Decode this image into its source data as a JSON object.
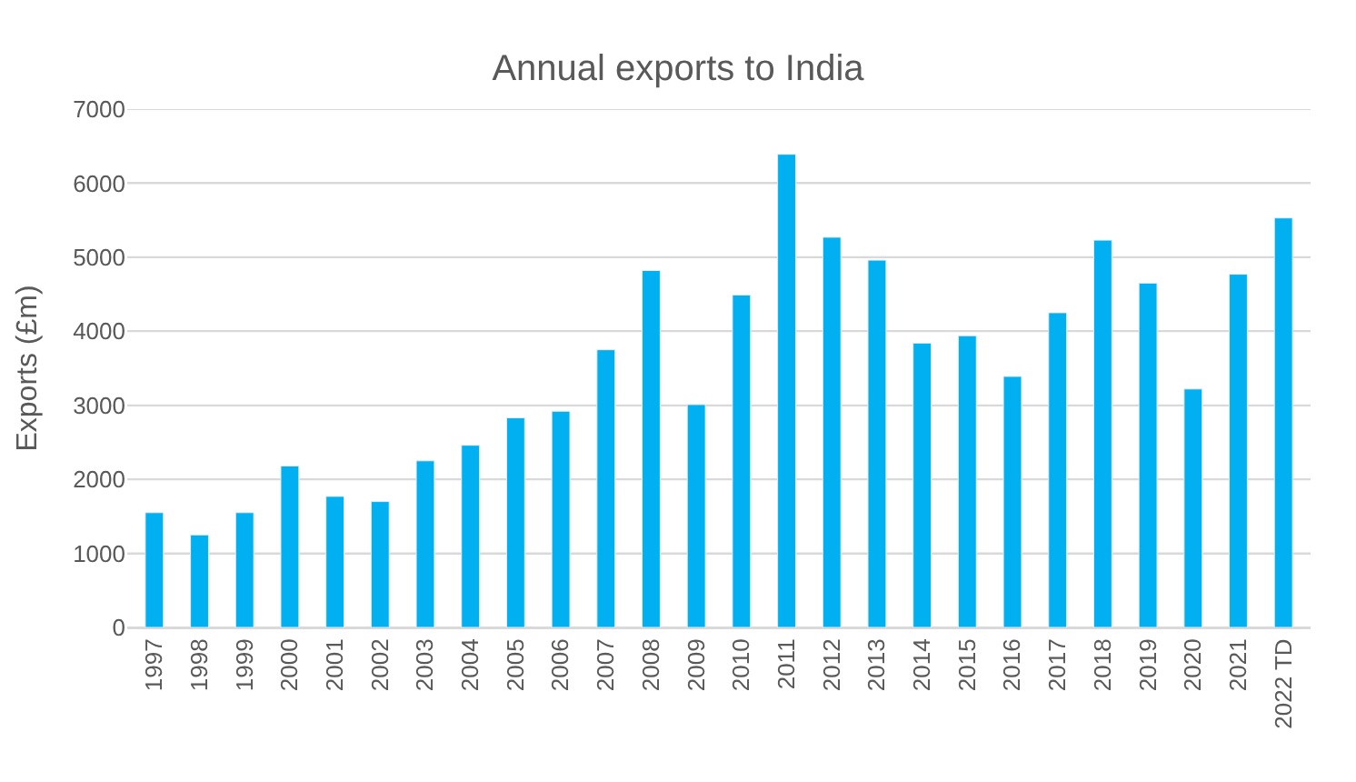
{
  "chart_data": {
    "type": "bar",
    "title": "Annual exports to India",
    "ylabel": "Exports (£m)",
    "categories": [
      "1997",
      "1998",
      "1999",
      "2000",
      "2001",
      "2002",
      "2003",
      "2004",
      "2005",
      "2006",
      "2007",
      "2008",
      "2009",
      "2010",
      "2011",
      "2012",
      "2013",
      "2014",
      "2015",
      "2016",
      "2017",
      "2018",
      "2019",
      "2020",
      "2021",
      "2022 TD"
    ],
    "values": [
      1550,
      1250,
      1550,
      2180,
      1770,
      1700,
      2250,
      2460,
      2830,
      2920,
      3750,
      4820,
      3010,
      4490,
      6390,
      5270,
      4960,
      3840,
      3940,
      3390,
      4250,
      5230,
      4650,
      3220,
      4770,
      5530
    ],
    "color": "#00b0f0",
    "ylim": [
      0,
      7000
    ],
    "yticks": [
      0,
      1000,
      2000,
      3000,
      4000,
      5000,
      6000,
      7000
    ],
    "grid": "y"
  }
}
